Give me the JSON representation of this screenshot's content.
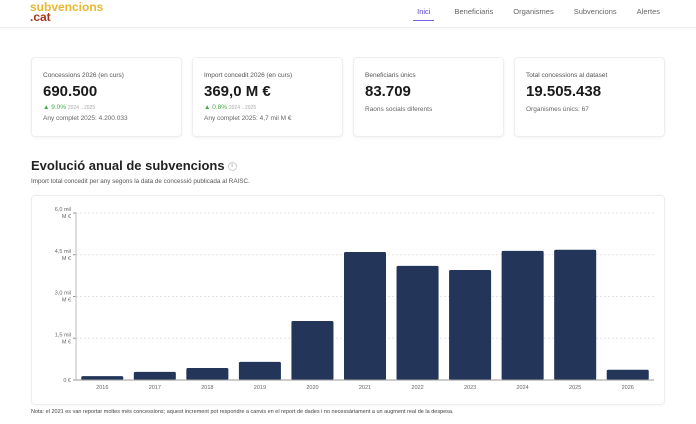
{
  "header": {
    "logo_top": "subvencions",
    "logo_bottom": ".cat",
    "nav": [
      {
        "label": "Inici",
        "active": true
      },
      {
        "label": "Beneficiaris"
      },
      {
        "label": "Organismes"
      },
      {
        "label": "Subvencions"
      },
      {
        "label": "Alertes"
      }
    ]
  },
  "cards": [
    {
      "label": "Concessions 2026 (en curs)",
      "value": "690.500",
      "delta": "▲ 9.0%",
      "delta_period": "2024→2025",
      "sub": "Any complet 2025: 4.200.033"
    },
    {
      "label": "Import concedit 2026 (en curs)",
      "value": "369,0 M €",
      "delta": "▲ 0.8%",
      "delta_period": "2024→2025",
      "sub": "Any complet 2025: 4,7 mil M €"
    },
    {
      "label": "Beneficiaris únics",
      "value": "83.709",
      "sub": "Raons socials diferents"
    },
    {
      "label": "Total concessions al dataset",
      "value": "19.505.438",
      "sub": "Organismes únics: 67"
    }
  ],
  "section": {
    "title": "Evolució anual de subvencions",
    "info_icon": "i",
    "subtitle": "Import total concedit per any segons la data de concessió publicada al RAISC."
  },
  "chart_data": {
    "type": "bar",
    "categories": [
      "2016",
      "2017",
      "2018",
      "2019",
      "2020",
      "2021",
      "2022",
      "2023",
      "2024",
      "2025",
      "2026"
    ],
    "values": [
      0.14,
      0.29,
      0.43,
      0.65,
      2.12,
      4.6,
      4.1,
      3.95,
      4.64,
      4.68,
      0.37
    ],
    "unit": "mil M €",
    "ylim": [
      0,
      6.0
    ],
    "yticks": [
      {
        "v": 0,
        "label": "0 €"
      },
      {
        "v": 1.5,
        "label": "1,5 mil M €"
      },
      {
        "v": 3.0,
        "label": "3,0 mil M €"
      },
      {
        "v": 4.5,
        "label": "4,5 mil M €"
      },
      {
        "v": 6.0,
        "label": "6,0 mil M €"
      }
    ],
    "grid": true,
    "bar_color": "#233659"
  },
  "note": "Nota: el 2021 es van reportar moltes més concessions; aquest increment pot respondre a canvis en el report de dades i no necessàriament a un augment real de la despesa."
}
